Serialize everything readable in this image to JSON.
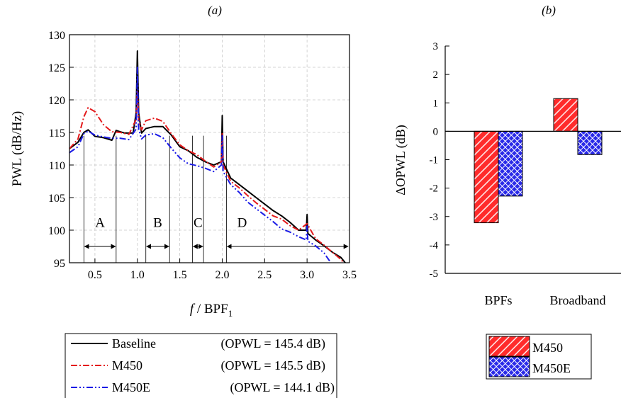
{
  "chart_data": [
    {
      "type": "line",
      "title": "(a)",
      "xlabel_main": "f",
      "xlabel_rest": " / BPF",
      "xlabel_sub": "1",
      "ylabel": "PWL (dB/Hz)",
      "xlim": [
        0.2,
        3.5
      ],
      "ylim": [
        95,
        130
      ],
      "xticks": [
        "0.5",
        "1.0",
        "1.5",
        "2.0",
        "2.5",
        "3.0",
        "3.5"
      ],
      "yticks": [
        "95",
        "100",
        "105",
        "110",
        "115",
        "120",
        "125",
        "130"
      ],
      "grid": true,
      "legend_position": "below",
      "series": [
        {
          "name": "Baseline",
          "opwl": "(OPWL = 145.4 dB)",
          "color": "#000000",
          "dash": "solid",
          "points": [
            [
              0.2,
              112.5
            ],
            [
              0.3,
              113.5
            ],
            [
              0.37,
              115.0
            ],
            [
              0.42,
              115.4
            ],
            [
              0.5,
              114.4
            ],
            [
              0.6,
              114.2
            ],
            [
              0.7,
              113.8
            ],
            [
              0.75,
              115.3
            ],
            [
              0.85,
              114.9
            ],
            [
              0.95,
              114.9
            ],
            [
              0.985,
              118
            ],
            [
              1.0,
              127.5
            ],
            [
              1.015,
              118
            ],
            [
              1.05,
              114.9
            ],
            [
              1.1,
              115.6
            ],
            [
              1.2,
              115.9
            ],
            [
              1.3,
              115.9
            ],
            [
              1.4,
              114.6
            ],
            [
              1.5,
              112.8
            ],
            [
              1.6,
              112.2
            ],
            [
              1.7,
              111.2
            ],
            [
              1.8,
              110.5
            ],
            [
              1.9,
              110.0
            ],
            [
              1.99,
              110.5
            ],
            [
              2.0,
              117.6
            ],
            [
              2.01,
              110.5
            ],
            [
              2.1,
              108.0
            ],
            [
              2.2,
              107.0
            ],
            [
              2.3,
              106.0
            ],
            [
              2.4,
              105.0
            ],
            [
              2.5,
              104.0
            ],
            [
              2.6,
              103.0
            ],
            [
              2.7,
              102.2
            ],
            [
              2.8,
              101.2
            ],
            [
              2.9,
              100.0
            ],
            [
              2.99,
              100
            ],
            [
              3.0,
              102.4
            ],
            [
              3.01,
              99.5
            ],
            [
              3.1,
              98.5
            ],
            [
              3.2,
              97.6
            ],
            [
              3.3,
              96.6
            ],
            [
              3.4,
              95.8
            ],
            [
              3.45,
              95.0
            ]
          ]
        },
        {
          "name": "M450",
          "opwl": "(OPWL = 145.5 dB)",
          "color": "#e41a1c",
          "dash": "dashdot",
          "points": [
            [
              0.2,
              112.5
            ],
            [
              0.3,
              114.0
            ],
            [
              0.37,
              117.4
            ],
            [
              0.42,
              118.8
            ],
            [
              0.5,
              118.2
            ],
            [
              0.6,
              116.2
            ],
            [
              0.7,
              115.1
            ],
            [
              0.8,
              115.0
            ],
            [
              0.9,
              114.7
            ],
            [
              0.985,
              117
            ],
            [
              1.0,
              121.5
            ],
            [
              1.015,
              117
            ],
            [
              1.05,
              115.4
            ],
            [
              1.1,
              116.8
            ],
            [
              1.2,
              117.2
            ],
            [
              1.3,
              116.7
            ],
            [
              1.4,
              114.8
            ],
            [
              1.5,
              113.1
            ],
            [
              1.6,
              112.2
            ],
            [
              1.7,
              111.6
            ],
            [
              1.8,
              110.6
            ],
            [
              1.9,
              109.7
            ],
            [
              1.99,
              110.5
            ],
            [
              2.0,
              114.8
            ],
            [
              2.01,
              110.0
            ],
            [
              2.1,
              107.5
            ],
            [
              2.2,
              106.5
            ],
            [
              2.3,
              105.3
            ],
            [
              2.4,
              104.2
            ],
            [
              2.5,
              103.2
            ],
            [
              2.6,
              102.2
            ],
            [
              2.7,
              101.7
            ],
            [
              2.8,
              100.7
            ],
            [
              2.9,
              100.0
            ],
            [
              3.0,
              101.0
            ],
            [
              3.1,
              98.7
            ],
            [
              3.2,
              97.7
            ],
            [
              3.3,
              96.6
            ],
            [
              3.4,
              95.5
            ],
            [
              3.43,
              95.0
            ]
          ]
        },
        {
          "name": "M450E",
          "opwl": "(OPWL = 144.1 dB)",
          "color": "#1a1ae6",
          "dash": "dashdotdot",
          "points": [
            [
              0.2,
              111.9
            ],
            [
              0.3,
              112.8
            ],
            [
              0.37,
              114.8
            ],
            [
              0.42,
              115.2
            ],
            [
              0.5,
              114.6
            ],
            [
              0.6,
              114.3
            ],
            [
              0.7,
              114.1
            ],
            [
              0.8,
              114.1
            ],
            [
              0.9,
              113.9
            ],
            [
              0.985,
              115.5
            ],
            [
              1.0,
              125.0
            ],
            [
              1.015,
              115.5
            ],
            [
              1.05,
              114.0
            ],
            [
              1.1,
              114.6
            ],
            [
              1.2,
              114.8
            ],
            [
              1.3,
              114.2
            ],
            [
              1.4,
              112.6
            ],
            [
              1.5,
              111.1
            ],
            [
              1.6,
              110.2
            ],
            [
              1.7,
              109.9
            ],
            [
              1.8,
              109.5
            ],
            [
              1.9,
              109.0
            ],
            [
              1.99,
              110.0
            ],
            [
              2.0,
              114.5
            ],
            [
              2.01,
              109.0
            ],
            [
              2.1,
              107.0
            ],
            [
              2.2,
              105.8
            ],
            [
              2.3,
              104.3
            ],
            [
              2.4,
              103.3
            ],
            [
              2.5,
              102.3
            ],
            [
              2.6,
              101.3
            ],
            [
              2.7,
              100.2
            ],
            [
              2.8,
              99.7
            ],
            [
              2.9,
              99.0
            ],
            [
              2.99,
              98.5
            ],
            [
              3.0,
              100.8
            ],
            [
              3.01,
              98.3
            ],
            [
              3.1,
              97.6
            ],
            [
              3.2,
              96.5
            ],
            [
              3.28,
              95.0
            ]
          ]
        }
      ],
      "regions": [
        {
          "label": "A",
          "x0": 0.37,
          "x1": 0.75
        },
        {
          "label": "B",
          "x0": 1.1,
          "x1": 1.38
        },
        {
          "label": "C",
          "x0": 1.65,
          "x1": 1.78
        },
        {
          "label": "D",
          "x0": 2.05,
          "x1": 3.5
        }
      ]
    },
    {
      "type": "bar",
      "title": "(b)",
      "xlabel": "",
      "ylabel": "ΔOPWL (dB)",
      "ylim": [
        -5,
        3
      ],
      "yticks": [
        "-5",
        "-4",
        "-3",
        "-2",
        "-1",
        "0",
        "1",
        "2",
        "3"
      ],
      "categories": [
        "BPFs",
        "Broadband"
      ],
      "series": [
        {
          "name": "M450",
          "color": "#ff2b2b",
          "pattern": "diagonal-hatch",
          "values": [
            -3.22,
            1.15
          ]
        },
        {
          "name": "M450E",
          "color": "#2a2ae8",
          "pattern": "crosshatch",
          "values": [
            -2.28,
            -0.82
          ]
        }
      ],
      "legend_position": "below"
    }
  ]
}
